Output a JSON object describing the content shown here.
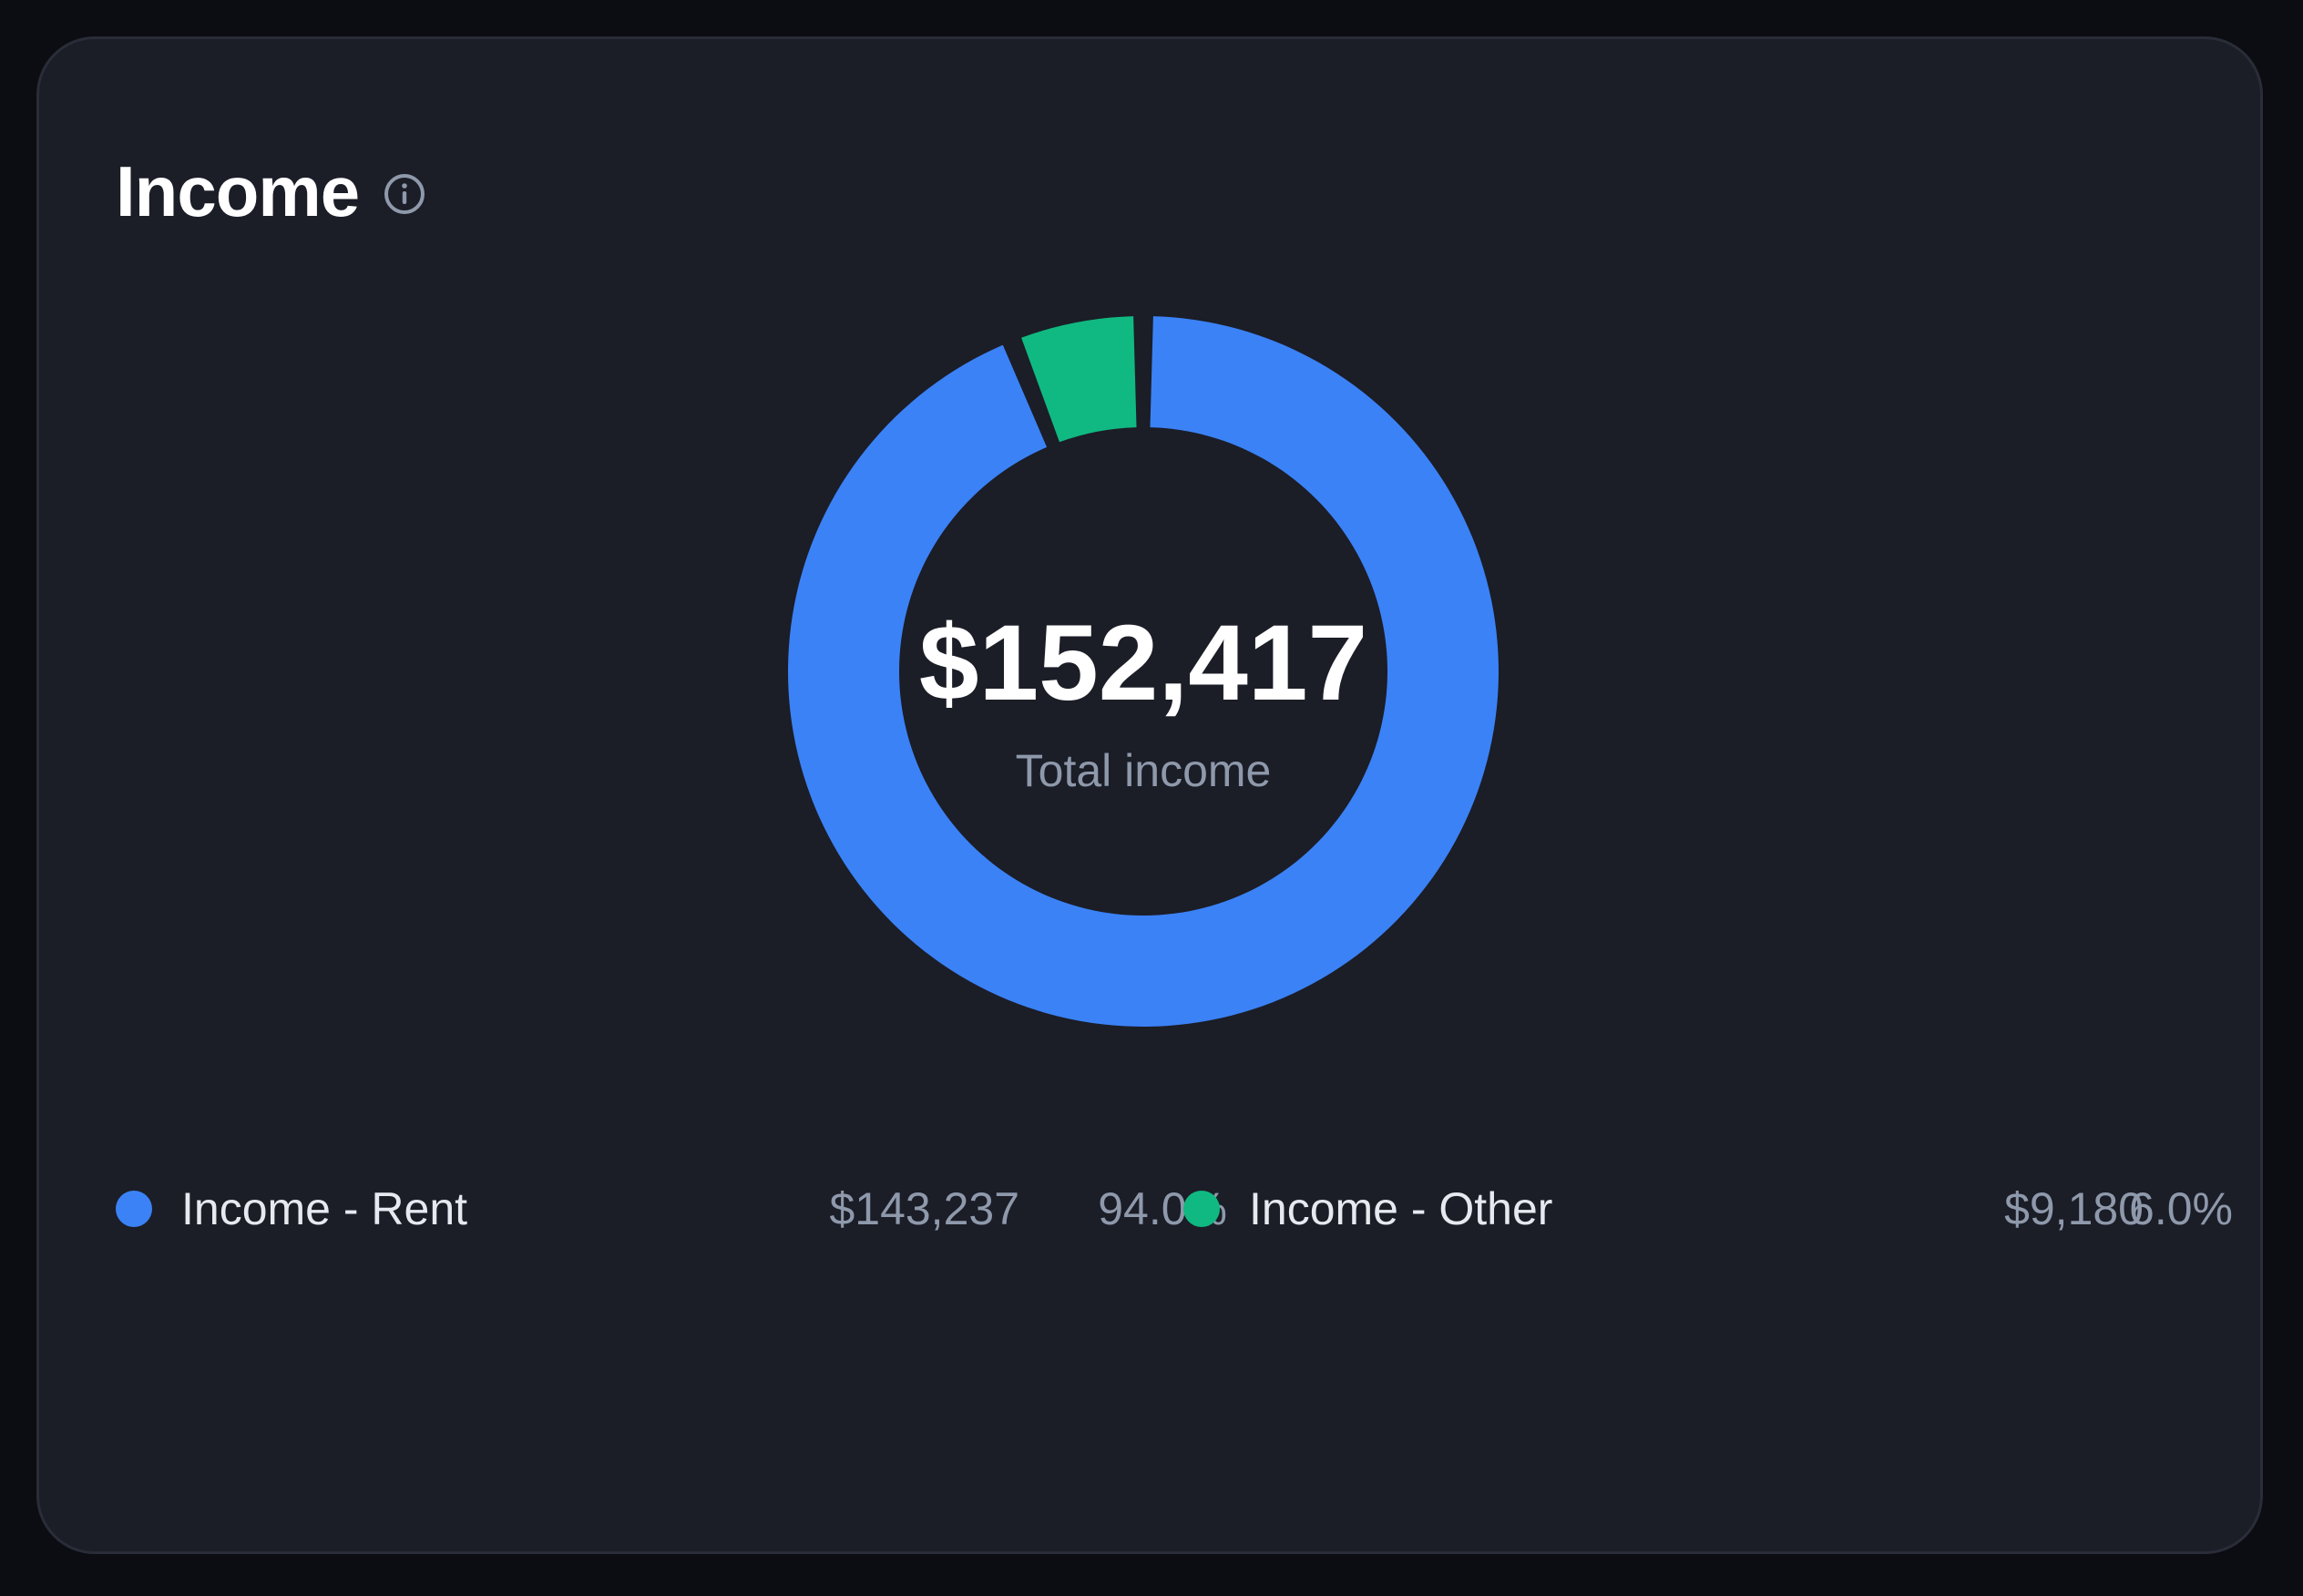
{
  "card": {
    "title": "Income"
  },
  "icons": {
    "info": "info-circle-icon"
  },
  "chart_data": {
    "type": "pie",
    "donut": true,
    "center_value": "$152,417",
    "center_label": "Total income",
    "slices": [
      {
        "name": "Income - Rent",
        "value": 143237,
        "amount": "$143,237",
        "percent": "94.0%",
        "color": "#3b82f6"
      },
      {
        "name": "Income - Other",
        "value": 9180,
        "amount": "$9,180",
        "percent": "6.0%",
        "color": "#10b981"
      }
    ]
  },
  "colors": {
    "background": "#0b0d12",
    "card": "#1b1d27",
    "rent": "#3b82f6",
    "other": "#10b981",
    "muted_text": "#8e99ab"
  }
}
